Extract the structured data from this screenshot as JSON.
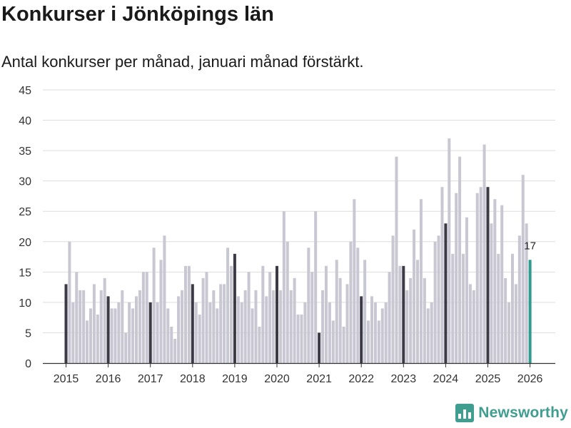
{
  "title": "Konkurser i Jönköpings län",
  "subtitle": "Antal konkurser per månad, januari månad förstärkt.",
  "brand": {
    "name": "Newsworthy",
    "icon": "newsworthy-logo-icon"
  },
  "colors": {
    "regular": "#c8c7d2",
    "january": "#3b3a45",
    "latest": "#2f9a8f",
    "grid": "#dddddd",
    "axis": "#333333"
  },
  "chart_data": {
    "type": "bar",
    "title": "Konkurser i Jönköpings län",
    "subtitle": "Antal konkurser per månad, januari månad förstärkt.",
    "xlabel": "",
    "ylabel": "",
    "ylim": [
      0,
      45
    ],
    "yticks": [
      0,
      5,
      10,
      15,
      20,
      25,
      30,
      35,
      40,
      45
    ],
    "xticks": [
      "2015",
      "2016",
      "2017",
      "2018",
      "2019",
      "2020",
      "2021",
      "2022",
      "2023",
      "2024",
      "2025",
      "2026"
    ],
    "grid": true,
    "legend": "none",
    "start": "2015-01",
    "highlight": "january",
    "annotations": [
      {
        "index": 132,
        "text": "17"
      }
    ],
    "values": [
      13,
      20,
      10,
      15,
      12,
      12,
      7,
      9,
      13,
      8,
      12,
      14,
      11,
      9,
      9,
      10,
      12,
      5,
      10,
      9,
      11,
      12,
      15,
      15,
      10,
      19,
      10,
      17,
      21,
      9,
      6,
      4,
      11,
      12,
      16,
      16,
      13,
      10,
      8,
      14,
      15,
      10,
      12,
      9,
      13,
      13,
      19,
      16,
      18,
      11,
      10,
      12,
      15,
      9,
      12,
      6,
      16,
      11,
      15,
      12,
      16,
      12,
      25,
      20,
      12,
      14,
      8,
      8,
      10,
      19,
      15,
      25,
      5,
      12,
      16,
      10,
      7,
      17,
      14,
      6,
      13,
      20,
      27,
      19,
      11,
      17,
      7,
      11,
      10,
      7,
      9,
      10,
      15,
      21,
      34,
      16,
      16,
      12,
      14,
      22,
      17,
      27,
      14,
      9,
      10,
      20,
      21,
      29,
      23,
      37,
      18,
      28,
      34,
      18,
      24,
      13,
      12,
      28,
      29,
      36,
      29,
      23,
      27,
      18,
      26,
      14,
      10,
      18,
      13,
      21,
      31,
      23,
      17
    ]
  }
}
